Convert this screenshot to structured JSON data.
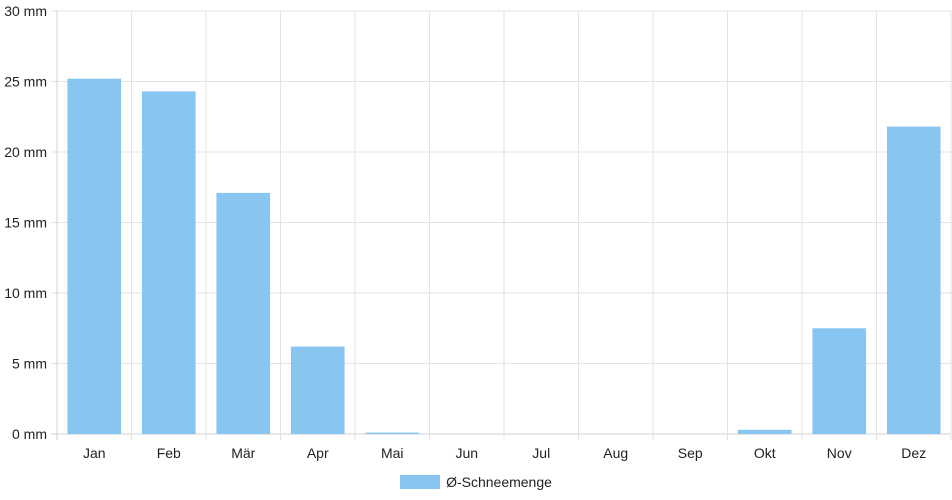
{
  "chart_data": {
    "type": "bar",
    "categories": [
      "Jan",
      "Feb",
      "Mär",
      "Apr",
      "Mai",
      "Jun",
      "Jul",
      "Aug",
      "Sep",
      "Okt",
      "Nov",
      "Dez"
    ],
    "series": [
      {
        "name": "Ø-Schneemenge",
        "values": [
          25.2,
          24.3,
          17.1,
          6.2,
          0.1,
          0,
          0,
          0,
          0,
          0.3,
          7.5,
          21.8
        ]
      }
    ],
    "y_ticks": [
      "0 mm",
      "5 mm",
      "10 mm",
      "15 mm",
      "20 mm",
      "25 mm",
      "30 mm"
    ],
    "ylim": [
      0,
      30
    ],
    "y_tick_step": 5,
    "title": "",
    "xlabel": "",
    "ylabel": "",
    "grid": true,
    "legend_position": "bottom",
    "colors": {
      "bar": "#88c6f1",
      "grid": "#e3e3e3",
      "axis": "#d0d0d0",
      "text": "#222222"
    }
  }
}
